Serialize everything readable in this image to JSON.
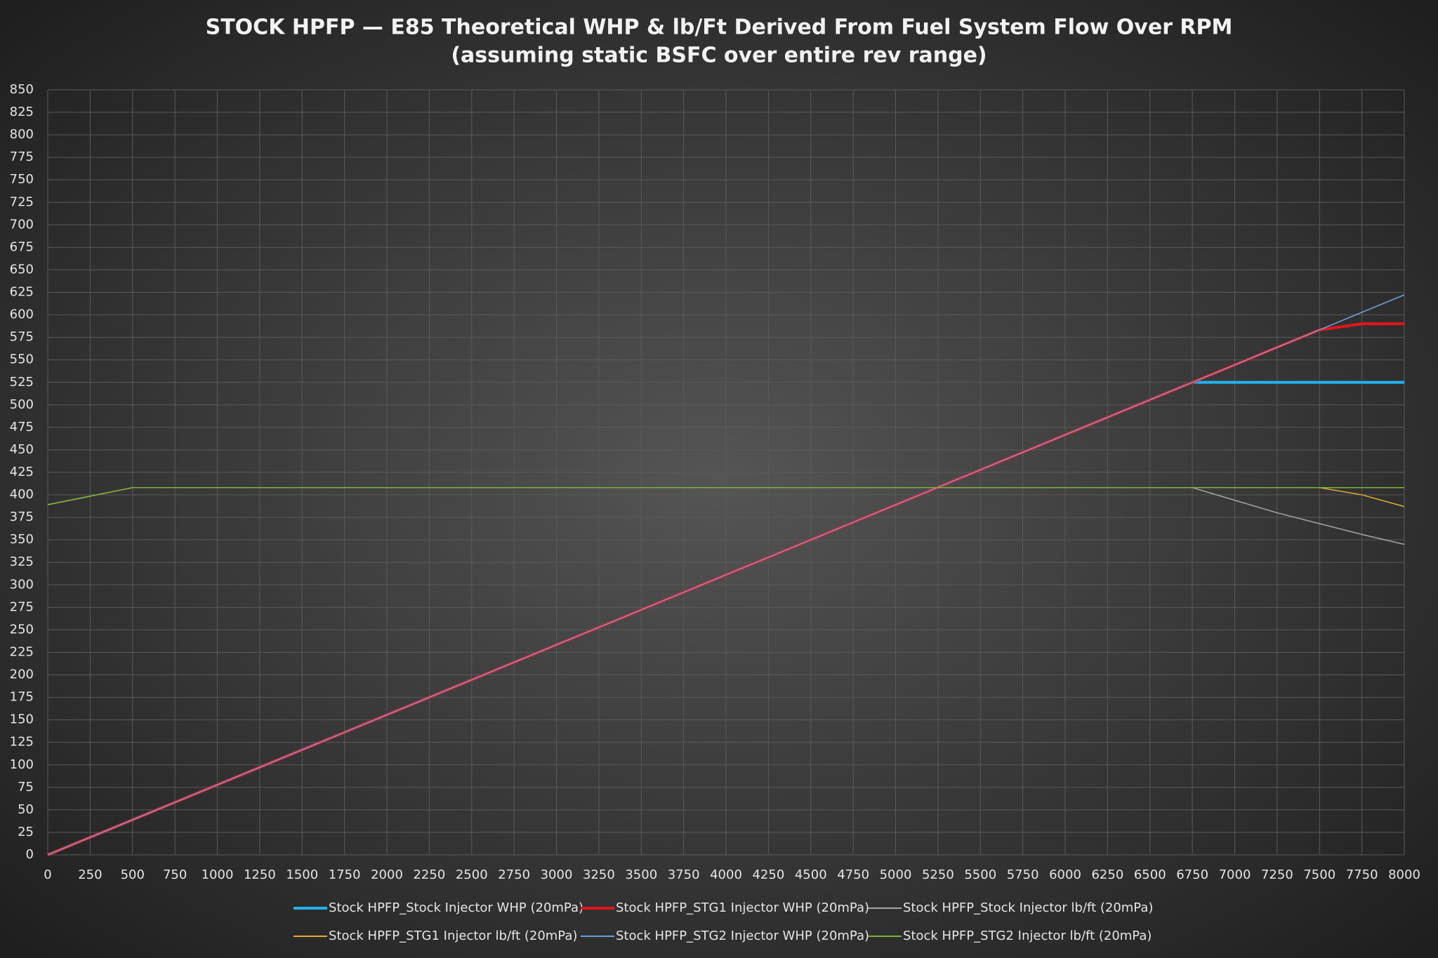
{
  "chart_data": {
    "type": "line",
    "title": "STOCK HPFP — E85 Theoretical WHP & lb/Ft Derived From Fuel System Flow Over RPM",
    "subtitle": "(assuming static BSFC over entire rev range)",
    "x": [
      0,
      500,
      6750,
      7000,
      7250,
      7500,
      7750,
      8000
    ],
    "series": [
      {
        "name": "Stock HPFP_Stock Injector WHP (20mPa)",
        "color": "#1fb4f0",
        "width": 4,
        "values": [
          0,
          38.9,
          525,
          525,
          525,
          525,
          525,
          525
        ]
      },
      {
        "name": "Stock HPFP_STG1 Injector WHP (20mPa)",
        "color": "#e8141c",
        "width": 4,
        "values": [
          0,
          38.9,
          525,
          544.4,
          563.9,
          583.3,
          590,
          590
        ]
      },
      {
        "name": "Stock HPFP_Stock Injector lb/ft (20mPa)",
        "color": "#a6a6a6",
        "width": 1.5,
        "values": [
          389,
          408,
          408,
          394,
          380,
          368,
          356,
          345
        ]
      },
      {
        "name": "Stock HPFP_STG1 Injector lb/ft (20mPa)",
        "color": "#e0b030",
        "width": 1.5,
        "values": [
          389,
          408,
          408,
          408,
          408,
          408,
          400,
          387
        ]
      },
      {
        "name": "Stock HPFP_STG2 Injector WHP (20mPa)",
        "color": "#6fa0d8",
        "width": 1.5,
        "values": [
          0,
          38.9,
          525,
          544.4,
          563.9,
          583.3,
          602.8,
          622.2
        ]
      },
      {
        "name": "Stock HPFP_STG2 Injector lb/ft (20mPa)",
        "color": "#7fb03a",
        "width": 1.5,
        "values": [
          389,
          408,
          408,
          408,
          408,
          408,
          408,
          408
        ]
      }
    ],
    "xlim": [
      0,
      8000
    ],
    "xticks": [
      0,
      250,
      500,
      750,
      1000,
      1250,
      1500,
      1750,
      2000,
      2250,
      2500,
      2750,
      3000,
      3250,
      3500,
      3750,
      4000,
      4250,
      4500,
      4750,
      5000,
      5250,
      5500,
      5750,
      6000,
      6250,
      6500,
      6750,
      7000,
      7250,
      7500,
      7750,
      8000
    ],
    "ylim": [
      0,
      850
    ],
    "yticks": [
      0,
      25,
      50,
      75,
      100,
      125,
      150,
      175,
      200,
      225,
      250,
      275,
      300,
      325,
      350,
      375,
      400,
      425,
      450,
      475,
      500,
      525,
      550,
      575,
      600,
      625,
      650,
      675,
      700,
      725,
      750,
      775,
      800,
      825,
      850
    ],
    "grid": true
  }
}
